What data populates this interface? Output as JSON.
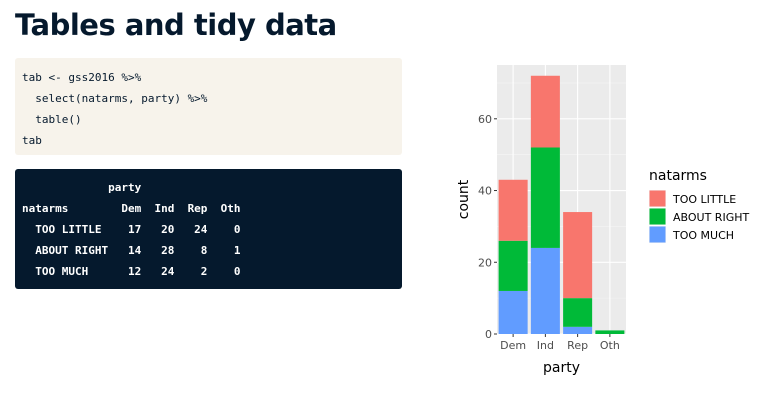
{
  "slide": {
    "title": "Tables and tidy data"
  },
  "code": {
    "lines": [
      "tab <- gss2016 %>%",
      "  select(natarms, party) %>%",
      "  table()",
      "tab"
    ]
  },
  "output": {
    "lines": [
      "             party",
      "natarms        Dem  Ind  Rep  Oth",
      "  TOO LITTLE    17   20   24    0",
      "  ABOUT RIGHT   14   28    8    1",
      "  TOO MUCH      12   24    2    0"
    ]
  },
  "chart_data": {
    "type": "bar",
    "stacked": true,
    "categories": [
      "Dem",
      "Ind",
      "Rep",
      "Oth"
    ],
    "series": [
      {
        "name": "TOO LITTLE",
        "values": [
          17,
          20,
          24,
          0
        ],
        "color": "#f8766d"
      },
      {
        "name": "ABOUT RIGHT",
        "values": [
          14,
          28,
          8,
          1
        ],
        "color": "#00ba38"
      },
      {
        "name": "TOO MUCH",
        "values": [
          12,
          24,
          2,
          0
        ],
        "color": "#619cff"
      }
    ],
    "stack_order_bottom_to_top": [
      "TOO MUCH",
      "ABOUT RIGHT",
      "TOO LITTLE"
    ],
    "xlabel": "party",
    "ylabel": "count",
    "yticks": [
      0,
      20,
      40,
      60
    ],
    "ylim": [
      0,
      75
    ],
    "legend_title": "natarms",
    "legend_position": "right",
    "grid": true,
    "panel_background": "#ebebeb"
  }
}
